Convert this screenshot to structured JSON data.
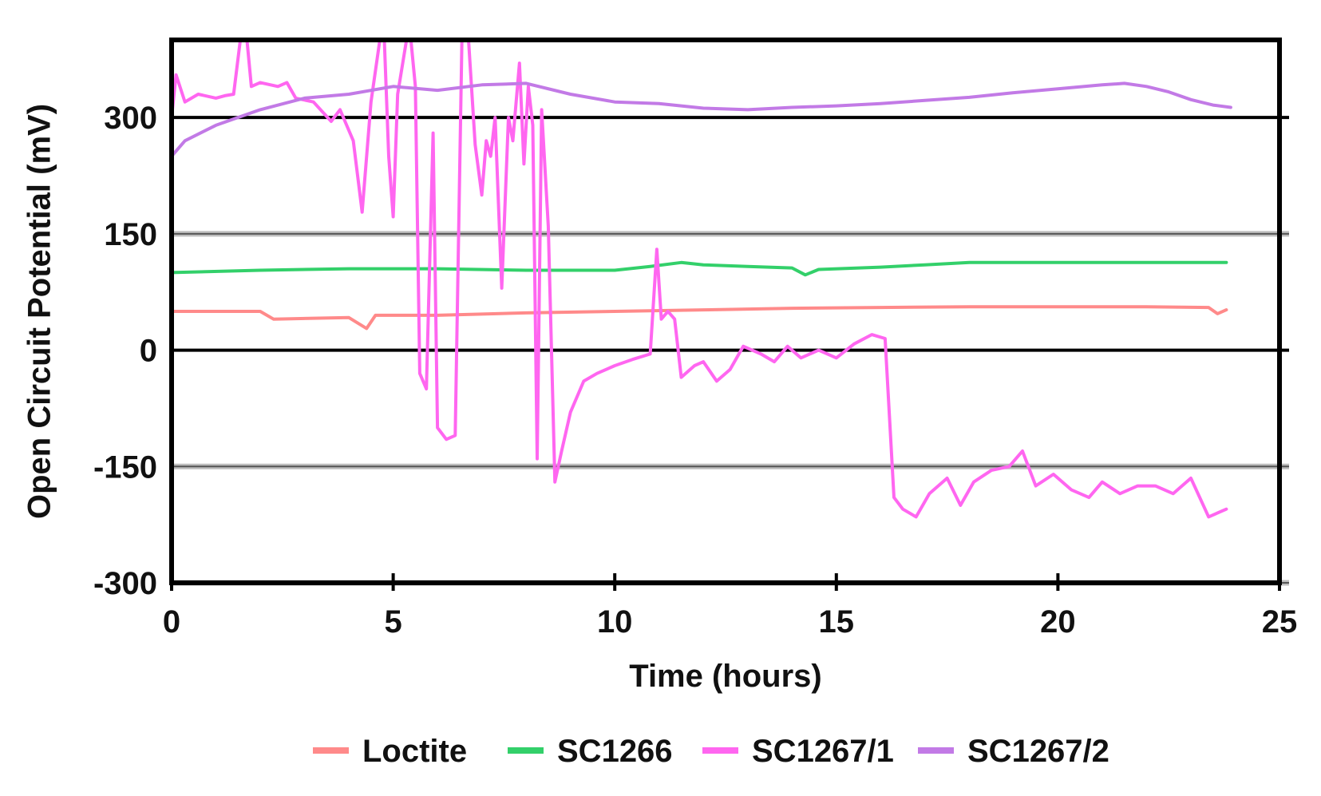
{
  "chart_data": {
    "type": "line",
    "title": "",
    "xlabel": "Time (hours)",
    "ylabel": "Open Circuit Potential (mV)",
    "xlim": [
      0,
      25
    ],
    "ylim": [
      -300,
      400
    ],
    "xticks": [
      "0",
      "5",
      "10",
      "15",
      "20",
      "25"
    ],
    "yticks": [
      "300",
      "150",
      "0",
      "-150",
      "-300"
    ],
    "grid": true,
    "legend_position": "bottom",
    "series": [
      {
        "name": "Loctite",
        "color": "#ff8a8a",
        "points": [
          [
            0,
            50
          ],
          [
            2,
            50
          ],
          [
            2.3,
            40
          ],
          [
            4,
            42
          ],
          [
            4.4,
            28
          ],
          [
            4.6,
            45
          ],
          [
            6,
            45
          ],
          [
            8,
            48
          ],
          [
            10,
            50
          ],
          [
            12,
            52
          ],
          [
            14,
            54
          ],
          [
            16,
            55
          ],
          [
            18,
            56
          ],
          [
            20,
            56
          ],
          [
            22,
            56
          ],
          [
            23.4,
            55
          ],
          [
            23.6,
            47
          ],
          [
            23.8,
            52
          ]
        ]
      },
      {
        "name": "SC1266",
        "color": "#33d06a",
        "points": [
          [
            0,
            100
          ],
          [
            2,
            103
          ],
          [
            4,
            105
          ],
          [
            6,
            105
          ],
          [
            8,
            103
          ],
          [
            10,
            103
          ],
          [
            10.8,
            108
          ],
          [
            11.5,
            113
          ],
          [
            12,
            110
          ],
          [
            13,
            108
          ],
          [
            14,
            106
          ],
          [
            14.3,
            97
          ],
          [
            14.6,
            104
          ],
          [
            16,
            107
          ],
          [
            17,
            110
          ],
          [
            18,
            113
          ],
          [
            20,
            113
          ],
          [
            22,
            113
          ],
          [
            23.8,
            113
          ]
        ]
      },
      {
        "name": "SC1267/1",
        "color": "#ff66f0",
        "points": [
          [
            0,
            300
          ],
          [
            0.1,
            355
          ],
          [
            0.3,
            320
          ],
          [
            0.6,
            330
          ],
          [
            1,
            325
          ],
          [
            1.2,
            328
          ],
          [
            1.4,
            330
          ],
          [
            1.55,
            400
          ],
          [
            1.7,
            400
          ],
          [
            1.8,
            340
          ],
          [
            2,
            345
          ],
          [
            2.4,
            340
          ],
          [
            2.6,
            345
          ],
          [
            2.8,
            325
          ],
          [
            3.2,
            320
          ],
          [
            3.6,
            295
          ],
          [
            3.8,
            310
          ],
          [
            4.1,
            270
          ],
          [
            4.3,
            178
          ],
          [
            4.5,
            320
          ],
          [
            4.7,
            400
          ],
          [
            4.8,
            400
          ],
          [
            4.9,
            250
          ],
          [
            5.0,
            172
          ],
          [
            5.1,
            330
          ],
          [
            5.3,
            400
          ],
          [
            5.4,
            400
          ],
          [
            5.5,
            340
          ],
          [
            5.6,
            -30
          ],
          [
            5.75,
            -50
          ],
          [
            5.9,
            280
          ],
          [
            6.0,
            -100
          ],
          [
            6.2,
            -115
          ],
          [
            6.4,
            -110
          ],
          [
            6.55,
            400
          ],
          [
            6.7,
            400
          ],
          [
            6.85,
            265
          ],
          [
            7.0,
            200
          ],
          [
            7.1,
            270
          ],
          [
            7.2,
            250
          ],
          [
            7.3,
            300
          ],
          [
            7.45,
            80
          ],
          [
            7.6,
            300
          ],
          [
            7.7,
            270
          ],
          [
            7.85,
            370
          ],
          [
            7.95,
            240
          ],
          [
            8.05,
            340
          ],
          [
            8.15,
            290
          ],
          [
            8.25,
            -140
          ],
          [
            8.35,
            310
          ],
          [
            8.5,
            160
          ],
          [
            8.65,
            -170
          ],
          [
            8.8,
            -130
          ],
          [
            9.0,
            -80
          ],
          [
            9.3,
            -40
          ],
          [
            9.6,
            -30
          ],
          [
            10,
            -20
          ],
          [
            10.4,
            -12
          ],
          [
            10.8,
            -5
          ],
          [
            10.95,
            130
          ],
          [
            11.05,
            40
          ],
          [
            11.2,
            50
          ],
          [
            11.35,
            40
          ],
          [
            11.5,
            -35
          ],
          [
            11.8,
            -20
          ],
          [
            12.0,
            -15
          ],
          [
            12.3,
            -40
          ],
          [
            12.6,
            -25
          ],
          [
            12.9,
            5
          ],
          [
            13.3,
            -5
          ],
          [
            13.6,
            -15
          ],
          [
            13.9,
            5
          ],
          [
            14.2,
            -10
          ],
          [
            14.6,
            0
          ],
          [
            15.0,
            -10
          ],
          [
            15.4,
            8
          ],
          [
            15.8,
            20
          ],
          [
            16.1,
            15
          ],
          [
            16.3,
            -190
          ],
          [
            16.5,
            -205
          ],
          [
            16.8,
            -215
          ],
          [
            17.1,
            -185
          ],
          [
            17.5,
            -165
          ],
          [
            17.8,
            -200
          ],
          [
            18.1,
            -170
          ],
          [
            18.5,
            -155
          ],
          [
            18.9,
            -150
          ],
          [
            19.2,
            -130
          ],
          [
            19.5,
            -175
          ],
          [
            19.9,
            -160
          ],
          [
            20.3,
            -180
          ],
          [
            20.7,
            -190
          ],
          [
            21.0,
            -170
          ],
          [
            21.4,
            -185
          ],
          [
            21.8,
            -175
          ],
          [
            22.2,
            -175
          ],
          [
            22.6,
            -185
          ],
          [
            23.0,
            -165
          ],
          [
            23.4,
            -215
          ],
          [
            23.8,
            -205
          ]
        ]
      },
      {
        "name": "SC1267/2",
        "color": "#c27ae6",
        "points": [
          [
            0,
            250
          ],
          [
            0.3,
            270
          ],
          [
            1,
            290
          ],
          [
            2,
            310
          ],
          [
            3,
            325
          ],
          [
            4,
            330
          ],
          [
            5,
            340
          ],
          [
            6,
            335
          ],
          [
            7,
            342
          ],
          [
            8,
            344
          ],
          [
            9,
            330
          ],
          [
            10,
            320
          ],
          [
            11,
            318
          ],
          [
            12,
            312
          ],
          [
            13,
            310
          ],
          [
            14,
            313
          ],
          [
            15,
            315
          ],
          [
            16,
            318
          ],
          [
            17,
            322
          ],
          [
            18,
            326
          ],
          [
            19,
            332
          ],
          [
            20,
            337
          ],
          [
            21,
            342
          ],
          [
            21.5,
            344
          ],
          [
            22,
            340
          ],
          [
            22.5,
            333
          ],
          [
            23,
            323
          ],
          [
            23.5,
            316
          ],
          [
            23.9,
            313
          ]
        ]
      }
    ]
  }
}
